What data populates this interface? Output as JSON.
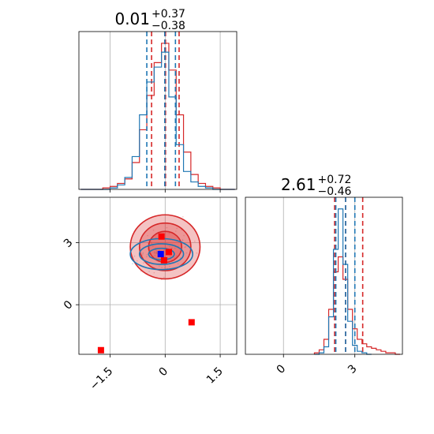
{
  "colors": {
    "red": "#d62728",
    "blue": "#1f77b4",
    "blue_marker": "#0000ff",
    "red_marker": "#ff0000",
    "grid": "#b0b0b0"
  },
  "chart_data": [
    {
      "panel": "marginal-param1",
      "type": "histogram",
      "title": {
        "value": "0.01",
        "plus": "+0.37",
        "minus": "−0.38"
      },
      "xlim": [
        -2.35,
        1.95
      ],
      "xticks": [
        -1.5,
        0.0,
        1.5
      ],
      "grid": true,
      "series": [
        {
          "color": "red",
          "median": 0.01,
          "lo": -0.37,
          "hi": 0.38,
          "centers": [
            -2.2,
            -2.0,
            -1.8,
            -1.6,
            -1.4,
            -1.2,
            -1.0,
            -0.8,
            -0.6,
            -0.4,
            -0.2,
            0.0,
            0.2,
            0.4,
            0.6,
            0.8,
            1.0,
            1.2,
            1.4,
            1.6,
            1.8
          ],
          "counts": [
            0,
            0,
            0,
            0.01,
            0.02,
            0.04,
            0.07,
            0.18,
            0.4,
            0.63,
            0.85,
            0.98,
            0.8,
            0.5,
            0.25,
            0.1,
            0.04,
            0.02,
            0.01,
            0,
            0
          ]
        },
        {
          "color": "blue",
          "median": -0.01,
          "lo": -0.5,
          "hi": 0.28,
          "centers": [
            -2.2,
            -2.0,
            -1.8,
            -1.6,
            -1.4,
            -1.2,
            -1.0,
            -0.8,
            -0.6,
            -0.4,
            -0.2,
            0.0,
            0.2,
            0.4,
            0.6,
            0.8,
            1.0,
            1.2,
            1.4,
            1.6,
            1.8
          ],
          "counts": [
            0,
            0,
            0,
            0,
            0.01,
            0.03,
            0.08,
            0.22,
            0.5,
            0.72,
            0.82,
            0.92,
            0.62,
            0.3,
            0.12,
            0.05,
            0.02,
            0.01,
            0,
            0,
            0
          ]
        }
      ]
    },
    {
      "panel": "marginal-param2",
      "type": "histogram",
      "title": {
        "value": "2.61",
        "plus": "+0.72",
        "minus": "−0.46"
      },
      "xlim": [
        -1.6,
        5.0
      ],
      "xticks": [
        0,
        3
      ],
      "grid": true,
      "series": [
        {
          "color": "red",
          "median": 2.61,
          "lo": 2.15,
          "hi": 3.33,
          "centers": [
            1.4,
            1.6,
            1.8,
            2.0,
            2.2,
            2.4,
            2.6,
            2.8,
            3.0,
            3.2,
            3.4,
            3.6,
            3.8,
            4.0,
            4.2,
            4.4,
            4.6,
            4.8
          ],
          "counts": [
            0.01,
            0.03,
            0.1,
            0.3,
            0.55,
            0.65,
            0.5,
            0.3,
            0.17,
            0.1,
            0.07,
            0.05,
            0.04,
            0.03,
            0.02,
            0.01,
            0.01,
            0
          ]
        },
        {
          "color": "blue",
          "median": 2.61,
          "lo": 2.2,
          "hi": 3.0,
          "centers": [
            1.4,
            1.6,
            1.8,
            2.0,
            2.2,
            2.4,
            2.6,
            2.8,
            3.0,
            3.2,
            3.4,
            3.6
          ],
          "counts": [
            0,
            0.01,
            0.05,
            0.25,
            0.7,
            0.97,
            0.6,
            0.22,
            0.06,
            0.02,
            0.01,
            0
          ]
        }
      ]
    },
    {
      "panel": "joint",
      "type": "scatter",
      "xlim": [
        -2.35,
        1.95
      ],
      "ylim": [
        -2.4,
        5.2
      ],
      "xticks": [
        -1.5,
        0.0,
        1.5
      ],
      "yticks": [
        0,
        3
      ],
      "grid": true,
      "contours": [
        {
          "color": "red",
          "cx": 0.0,
          "cy": 2.8,
          "rx": [
            0.95,
            0.7,
            0.45
          ],
          "ry": [
            1.55,
            1.15,
            0.75
          ],
          "filled": true
        },
        {
          "color": "blue",
          "cx": -0.1,
          "cy": 2.45,
          "rx": [
            0.85,
            0.6,
            0.35
          ],
          "ry": [
            0.75,
            0.5,
            0.28
          ],
          "filled": false
        }
      ],
      "points": [
        {
          "x": -0.1,
          "y": 3.3,
          "color": "red_marker"
        },
        {
          "x": -0.03,
          "y": 2.15,
          "color": "red_marker"
        },
        {
          "x": -1.75,
          "y": -2.2,
          "color": "red_marker"
        },
        {
          "x": 0.72,
          "y": -0.85,
          "color": "red_marker"
        },
        {
          "x": 0.1,
          "y": 2.55,
          "color": "red_marker"
        },
        {
          "x": -0.12,
          "y": 2.45,
          "color": "blue_marker"
        }
      ]
    }
  ]
}
